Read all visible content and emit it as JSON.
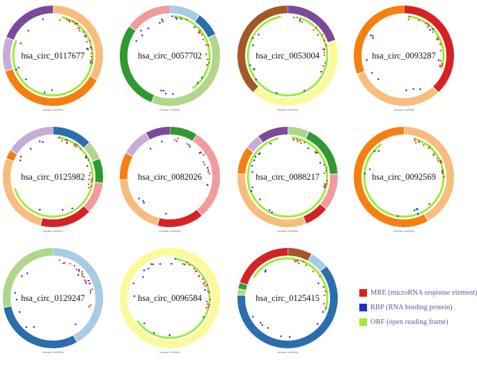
{
  "colors": {
    "MRE": "#dd2222",
    "RBP": "#1f2fd8",
    "ORF": "#99ee33",
    "palette": {
      "orange": "#f77f10",
      "light_orange": "#f8bd7d",
      "lilac": "#c8acd8",
      "purple": "#7b4a9c",
      "blue": "#2a6eae",
      "light_blue": "#a8cce4",
      "red": "#d62224",
      "pink": "#f29b9b",
      "green": "#2f9a30",
      "light_green": "#aed78a",
      "brown": "#a55827",
      "yellow": "#fbfa9a"
    }
  },
  "circ_label": "Human CircRNA",
  "legend": [
    {
      "key": "MRE",
      "label": "MRE (microRNA response element)",
      "color_key": "MRE"
    },
    {
      "key": "RBP",
      "label": "RBP (RNA binding protein)",
      "color_key": "RBP"
    },
    {
      "key": "ORF",
      "label": "ORF (open reading frame)",
      "color_key": "ORF"
    }
  ],
  "circles": [
    {
      "id": "hsa_circ_0117677",
      "segments": [
        {
          "color": "light_orange",
          "fraction": 0.33
        },
        {
          "color": "orange",
          "fraction": 0.37
        },
        {
          "color": "lilac",
          "fraction": 0.11
        },
        {
          "color": "purple",
          "fraction": 0.19
        }
      ],
      "orf": {
        "start": 0.04,
        "end": 0.81
      }
    },
    {
      "id": "hsa_circ_0057702",
      "segments": [
        {
          "color": "light_blue",
          "fraction": 0.1
        },
        {
          "color": "blue",
          "fraction": 0.08
        },
        {
          "color": "light_green",
          "fraction": 0.38
        },
        {
          "color": "green",
          "fraction": 0.29
        },
        {
          "color": "pink",
          "fraction": 0.15
        }
      ],
      "orf": {
        "start": 0.02,
        "end": 0.4
      }
    },
    {
      "id": "hsa_circ_0053004",
      "segments": [
        {
          "color": "purple",
          "fraction": 0.2
        },
        {
          "color": "yellow",
          "fraction": 0.42
        },
        {
          "color": "brown",
          "fraction": 0.38
        }
      ],
      "orf": {
        "start": 0.05,
        "end": 0.97
      }
    },
    {
      "id": "hsa_circ_0093287",
      "segments": [
        {
          "color": "red",
          "fraction": 0.38
        },
        {
          "color": "light_orange",
          "fraction": 0.31
        },
        {
          "color": "orange",
          "fraction": 0.31
        }
      ],
      "orf": {
        "start": 0.02,
        "end": 0.3
      }
    },
    {
      "id": "hsa_circ_0125982",
      "segments": [
        {
          "color": "blue",
          "fraction": 0.13
        },
        {
          "color": "light_green",
          "fraction": 0.06
        },
        {
          "color": "green",
          "fraction": 0.08
        },
        {
          "color": "pink",
          "fraction": 0.1
        },
        {
          "color": "red",
          "fraction": 0.17
        },
        {
          "color": "light_orange",
          "fraction": 0.27
        },
        {
          "color": "orange",
          "fraction": 0.03
        },
        {
          "color": "lilac",
          "fraction": 0.16
        }
      ],
      "orf": {
        "start": 0.02,
        "end": 0.7
      }
    },
    {
      "id": "hsa_circ_0082026",
      "segments": [
        {
          "color": "green",
          "fraction": 0.09
        },
        {
          "color": "pink",
          "fraction": 0.3
        },
        {
          "color": "red",
          "fraction": 0.15
        },
        {
          "color": "light_orange",
          "fraction": 0.2
        },
        {
          "color": "orange",
          "fraction": 0.09
        },
        {
          "color": "lilac",
          "fraction": 0.09
        },
        {
          "color": "purple",
          "fraction": 0.08
        }
      ],
      "orf": {
        "start": 0.0,
        "end": 0.0
      }
    },
    {
      "id": "hsa_circ_0088217",
      "segments": [
        {
          "color": "light_green",
          "fraction": 0.07
        },
        {
          "color": "green",
          "fraction": 0.17
        },
        {
          "color": "pink",
          "fraction": 0.12
        },
        {
          "color": "red",
          "fraction": 0.08
        },
        {
          "color": "light_orange",
          "fraction": 0.32
        },
        {
          "color": "orange",
          "fraction": 0.09
        },
        {
          "color": "lilac",
          "fraction": 0.05
        },
        {
          "color": "purple",
          "fraction": 0.1
        }
      ],
      "orf": {
        "start": 0.02,
        "end": 0.96
      }
    },
    {
      "id": "hsa_circ_0092569",
      "segments": [
        {
          "color": "light_orange",
          "fraction": 0.42
        },
        {
          "color": "orange",
          "fraction": 0.58
        }
      ],
      "orf": {
        "start": 0.05,
        "end": 0.9
      }
    },
    {
      "id": "hsa_circ_0129247",
      "segments": [
        {
          "color": "light_blue",
          "fraction": 0.42
        },
        {
          "color": "blue",
          "fraction": 0.3
        },
        {
          "color": "light_green",
          "fraction": 0.28
        }
      ],
      "orf": {
        "start": 0.0,
        "end": 0.0
      }
    },
    {
      "id": "hsa_circ_0096584",
      "segments": [
        {
          "color": "yellow",
          "fraction": 1.0
        }
      ],
      "orf": {
        "start": 0.02,
        "end": 0.65
      }
    },
    {
      "id": "hsa_circ_0125415",
      "segments": [
        {
          "color": "brown",
          "fraction": 0.08
        },
        {
          "color": "light_blue",
          "fraction": 0.06
        },
        {
          "color": "blue",
          "fraction": 0.62
        },
        {
          "color": "light_green",
          "fraction": 0.02
        },
        {
          "color": "green",
          "fraction": 0.02
        },
        {
          "color": "red",
          "fraction": 0.2
        }
      ],
      "orf": {
        "start": 0.84,
        "end": 1.3
      }
    }
  ]
}
